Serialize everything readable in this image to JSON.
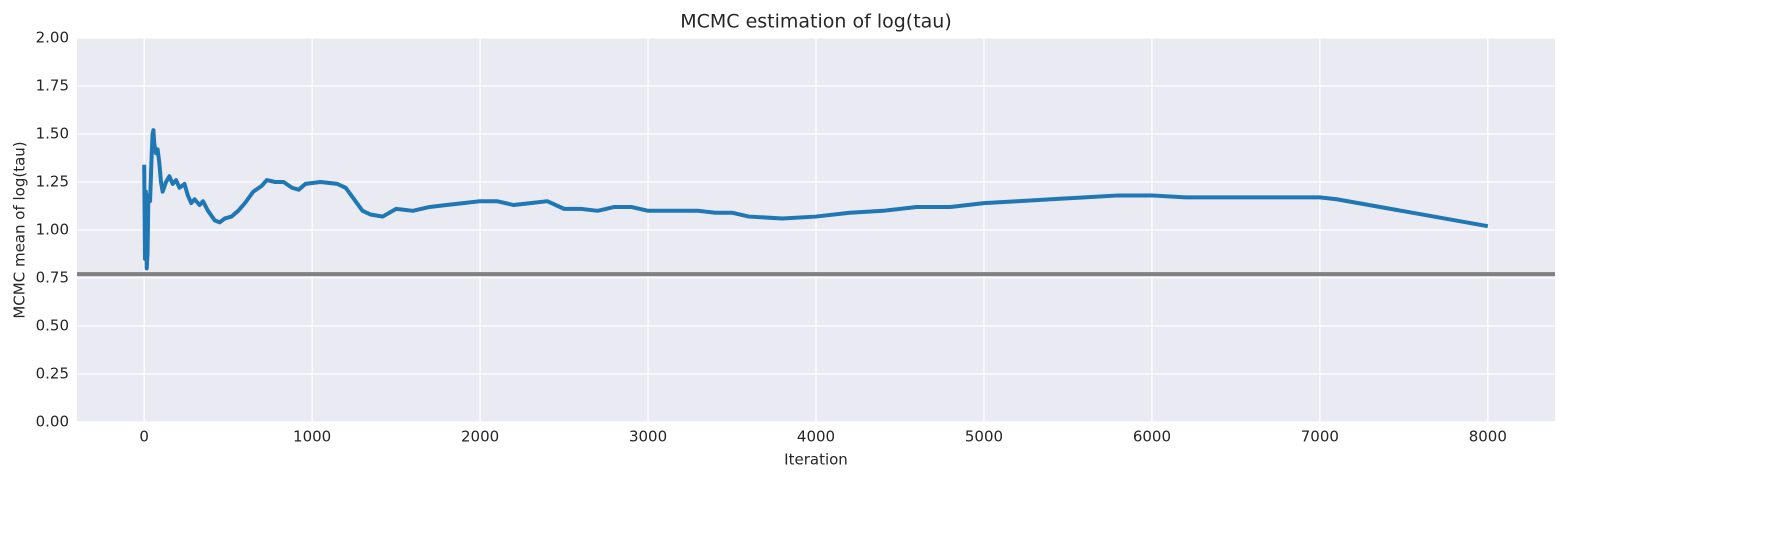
{
  "chart_data": {
    "type": "line",
    "title": "MCMC estimation of log(tau)",
    "xlabel": "Iteration",
    "ylabel": "MCMC mean of log(tau)",
    "x": [
      0,
      5,
      10,
      15,
      20,
      25,
      35,
      45,
      50,
      55,
      60,
      70,
      80,
      90,
      100,
      110,
      130,
      150,
      170,
      190,
      210,
      240,
      260,
      280,
      300,
      330,
      350,
      380,
      420,
      450,
      480,
      520,
      560,
      600,
      650,
      700,
      730,
      780,
      830,
      880,
      920,
      960,
      1050,
      1150,
      1200,
      1250,
      1300,
      1350,
      1420,
      1500,
      1600,
      1700,
      1800,
      1900,
      2000,
      2100,
      2200,
      2300,
      2400,
      2500,
      2600,
      2700,
      2800,
      2900,
      3000,
      3200,
      3300,
      3400,
      3500,
      3600,
      3800,
      4000,
      4200,
      4400,
      4600,
      4800,
      5000,
      5200,
      5400,
      5600,
      5800,
      6000,
      6200,
      6400,
      6600,
      6800,
      7000,
      7100,
      8000
    ],
    "values": [
      1.34,
      0.85,
      1.2,
      0.8,
      0.88,
      1.18,
      1.15,
      1.4,
      1.5,
      1.52,
      1.45,
      1.4,
      1.42,
      1.35,
      1.25,
      1.2,
      1.25,
      1.28,
      1.24,
      1.26,
      1.22,
      1.24,
      1.18,
      1.14,
      1.16,
      1.13,
      1.15,
      1.1,
      1.05,
      1.04,
      1.06,
      1.07,
      1.1,
      1.14,
      1.2,
      1.23,
      1.26,
      1.25,
      1.25,
      1.22,
      1.21,
      1.24,
      1.25,
      1.24,
      1.22,
      1.16,
      1.1,
      1.08,
      1.07,
      1.11,
      1.1,
      1.12,
      1.13,
      1.14,
      1.15,
      1.15,
      1.13,
      1.14,
      1.15,
      1.11,
      1.11,
      1.1,
      1.12,
      1.12,
      1.1,
      1.1,
      1.1,
      1.09,
      1.09,
      1.07,
      1.06,
      1.07,
      1.09,
      1.1,
      1.12,
      1.12,
      1.14,
      1.15,
      1.16,
      1.17,
      1.18,
      1.18,
      1.17,
      1.17,
      1.17,
      1.17,
      1.17,
      1.16,
      1.02
    ],
    "color": "#1f77b4",
    "hline": {
      "value": 0.77,
      "color": "#808080"
    },
    "xlim": [
      -400,
      8400
    ],
    "ylim": [
      0,
      2
    ],
    "xticks": [
      0,
      1000,
      2000,
      3000,
      4000,
      5000,
      6000,
      7000,
      8000
    ],
    "yticks": [
      {
        "value": 0,
        "label": "0.00"
      },
      {
        "value": 0.25,
        "label": "0.25"
      },
      {
        "value": 0.5,
        "label": "0.50"
      },
      {
        "value": 0.75,
        "label": "0.75"
      },
      {
        "value": 1,
        "label": "1.00"
      },
      {
        "value": 1.25,
        "label": "1.25"
      },
      {
        "value": 1.5,
        "label": "1.50"
      },
      {
        "value": 1.75,
        "label": "1.75"
      },
      {
        "value": 2,
        "label": "2.00"
      }
    ],
    "grid": true
  }
}
